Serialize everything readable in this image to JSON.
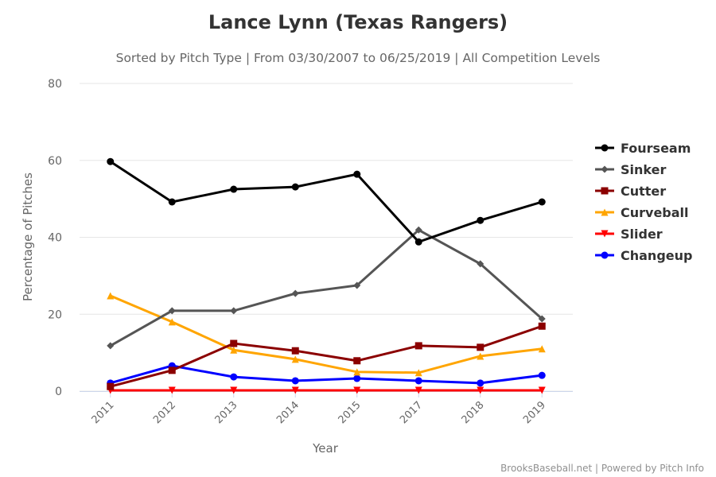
{
  "chart_data": {
    "type": "line",
    "title": "Lance Lynn (Texas Rangers)",
    "subtitle": "Sorted by Pitch Type | From 03/30/2007 to 06/25/2019 | All Competition Levels",
    "xlabel": "Year",
    "ylabel": "Percentage of Pitches",
    "ylim": [
      0,
      80
    ],
    "yticks": [
      "0",
      "20",
      "40",
      "60",
      "80"
    ],
    "categories": [
      "2011",
      "2012",
      "2013",
      "2014",
      "2015",
      "2017",
      "2018",
      "2019"
    ],
    "grid": true,
    "legend_position": "right",
    "series": [
      {
        "name": "Fourseam",
        "color": "#000000",
        "marker": "circle",
        "values": [
          59.7,
          49.2,
          52.5,
          53.1,
          56.4,
          38.8,
          44.4,
          49.2
        ]
      },
      {
        "name": "Sinker",
        "color": "#555555",
        "marker": "diamond",
        "values": [
          11.8,
          20.9,
          20.9,
          25.4,
          27.5,
          41.9,
          33.1,
          18.8
        ]
      },
      {
        "name": "Cutter",
        "color": "#8b0000",
        "marker": "square",
        "values": [
          1.2,
          5.4,
          12.4,
          10.5,
          7.9,
          11.8,
          11.4,
          16.9
        ]
      },
      {
        "name": "Curveball",
        "color": "#ffa500",
        "marker": "triangle",
        "values": [
          24.8,
          18.0,
          10.7,
          8.3,
          5.0,
          4.8,
          9.1,
          11.0
        ]
      },
      {
        "name": "Slider",
        "color": "#ff0000",
        "marker": "triangle-down",
        "values": [
          0.2,
          0.2,
          0.2,
          0.2,
          0.2,
          0.2,
          0.2,
          0.2
        ]
      },
      {
        "name": "Changeup",
        "color": "#0000ff",
        "marker": "circle",
        "values": [
          2.1,
          6.6,
          3.7,
          2.7,
          3.3,
          2.7,
          2.1,
          4.1
        ]
      }
    ],
    "credits": "BrooksBaseball.net | Powered by Pitch Info"
  }
}
